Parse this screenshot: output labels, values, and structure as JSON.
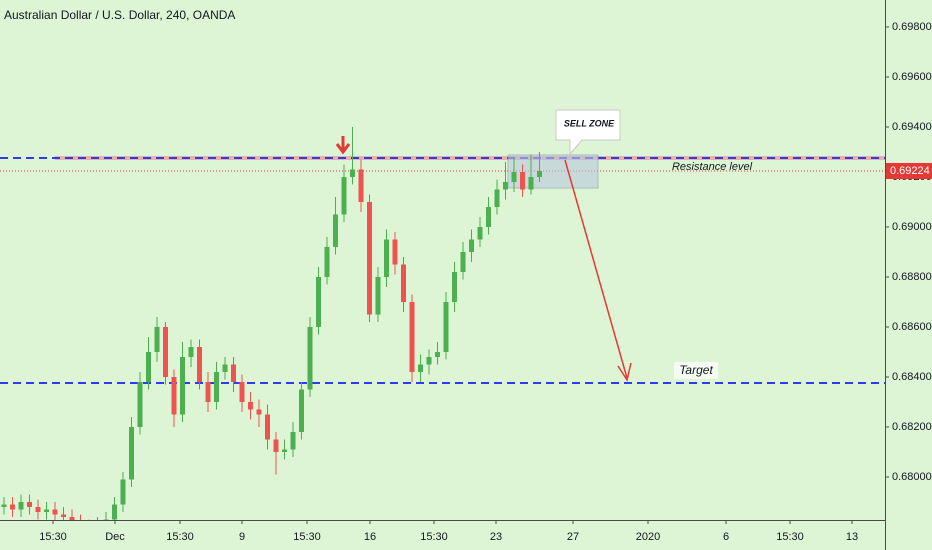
{
  "chart_data": {
    "type": "candlestick",
    "title": "Australian Dollar / U.S. Dollar, 240, OANDA",
    "up_color": "#4caf50",
    "down_color": "#ef5350",
    "open": [
      0.6788,
      0.6789,
      0.6787,
      0.679,
      0.6788,
      0.6786,
      0.6787,
      0.6785,
      0.6784,
      0.6782,
      0.678,
      0.6779,
      0.6781,
      0.6783,
      0.6789,
      0.6799,
      0.682,
      0.6838,
      0.685,
      0.686,
      0.684,
      0.6825,
      0.6848,
      0.6852,
      0.6838,
      0.683,
      0.6842,
      0.6845,
      0.6838,
      0.683,
      0.6827,
      0.6825,
      0.6815,
      0.681,
      0.6811,
      0.6818,
      0.6835,
      0.686,
      0.688,
      0.6892,
      0.6905,
      0.692,
      0.6923,
      0.691,
      0.6865,
      0.688,
      0.6895,
      0.6885,
      0.687,
      0.6842,
      0.6845,
      0.6848,
      0.685,
      0.687,
      0.6882,
      0.689,
      0.6895,
      0.69,
      0.6908,
      0.6915,
      0.6918,
      0.6922,
      0.6915,
      0.692
    ],
    "high": [
      0.6792,
      0.6792,
      0.6793,
      0.6793,
      0.6791,
      0.679,
      0.679,
      0.6788,
      0.6787,
      0.6785,
      0.6783,
      0.6784,
      0.6786,
      0.6792,
      0.6802,
      0.6824,
      0.6842,
      0.6856,
      0.6864,
      0.6862,
      0.6843,
      0.6854,
      0.6855,
      0.6855,
      0.6842,
      0.6846,
      0.6848,
      0.6848,
      0.6841,
      0.6834,
      0.6831,
      0.6829,
      0.6818,
      0.6815,
      0.6822,
      0.6838,
      0.6864,
      0.6884,
      0.6896,
      0.6912,
      0.6925,
      0.694,
      0.6927,
      0.6913,
      0.6884,
      0.6899,
      0.6898,
      0.6888,
      0.6873,
      0.6849,
      0.6851,
      0.6854,
      0.6874,
      0.6886,
      0.6894,
      0.6899,
      0.6904,
      0.6912,
      0.6919,
      0.6926,
      0.6928,
      0.6925,
      0.6929,
      0.693
    ],
    "low": [
      0.6785,
      0.6784,
      0.6784,
      0.6785,
      0.6783,
      0.6783,
      0.6782,
      0.6781,
      0.6779,
      0.6777,
      0.6776,
      0.6776,
      0.6778,
      0.678,
      0.6786,
      0.6796,
      0.6817,
      0.6835,
      0.6846,
      0.6837,
      0.682,
      0.6822,
      0.6844,
      0.6835,
      0.6826,
      0.6827,
      0.6839,
      0.6834,
      0.6826,
      0.6823,
      0.682,
      0.6811,
      0.6801,
      0.6807,
      0.6808,
      0.6815,
      0.6832,
      0.6857,
      0.6877,
      0.6889,
      0.6902,
      0.6917,
      0.6906,
      0.6862,
      0.6862,
      0.6876,
      0.6881,
      0.6866,
      0.6838,
      0.6838,
      0.6841,
      0.6845,
      0.6847,
      0.6866,
      0.6879,
      0.6886,
      0.6892,
      0.6897,
      0.6905,
      0.6911,
      0.6914,
      0.6912,
      0.6913,
      0.6918
    ],
    "close": [
      0.6789,
      0.6787,
      0.679,
      0.6788,
      0.6786,
      0.6787,
      0.6785,
      0.6784,
      0.6782,
      0.678,
      0.6779,
      0.6781,
      0.6783,
      0.6789,
      0.6799,
      0.682,
      0.6838,
      0.685,
      0.686,
      0.684,
      0.6825,
      0.6848,
      0.6852,
      0.6838,
      0.683,
      0.6842,
      0.6845,
      0.6838,
      0.683,
      0.6827,
      0.6825,
      0.6815,
      0.681,
      0.6811,
      0.6818,
      0.6835,
      0.686,
      0.688,
      0.6892,
      0.6905,
      0.692,
      0.6923,
      0.691,
      0.6865,
      0.688,
      0.6895,
      0.6885,
      0.687,
      0.6842,
      0.6845,
      0.6848,
      0.685,
      0.687,
      0.6882,
      0.689,
      0.6895,
      0.69,
      0.6908,
      0.6915,
      0.6918,
      0.6922,
      0.6915,
      0.692,
      0.69224
    ],
    "ylim": [
      0.67828,
      0.69908
    ],
    "yticks": [
      {
        "value": 0.68,
        "label": "0.68000"
      },
      {
        "value": 0.682,
        "label": "0.68200"
      },
      {
        "value": 0.684,
        "label": "0.68400"
      },
      {
        "value": 0.686,
        "label": "0.68600"
      },
      {
        "value": 0.688,
        "label": "0.68800"
      },
      {
        "value": 0.69,
        "label": "0.69000"
      },
      {
        "value": 0.692,
        "label": "0.69200"
      },
      {
        "value": 0.694,
        "label": "0.69400"
      },
      {
        "value": 0.696,
        "label": "0.69600"
      },
      {
        "value": 0.698,
        "label": "0.69800"
      }
    ],
    "xticks": [
      "15:30",
      "Dec",
      "15:30",
      "9",
      "15:30",
      "16",
      "15:30",
      "23",
      "27",
      "2020",
      "6",
      "15:30",
      "13"
    ],
    "last_price": 0.69224,
    "hlines": [
      {
        "value": 0.69276,
        "label": "Resistance level",
        "color": "#2d3cf0"
      },
      {
        "value": 0.68376,
        "label": "Target",
        "color": "#2d3cf0"
      }
    ],
    "zone_label": "SELL ZONE"
  }
}
